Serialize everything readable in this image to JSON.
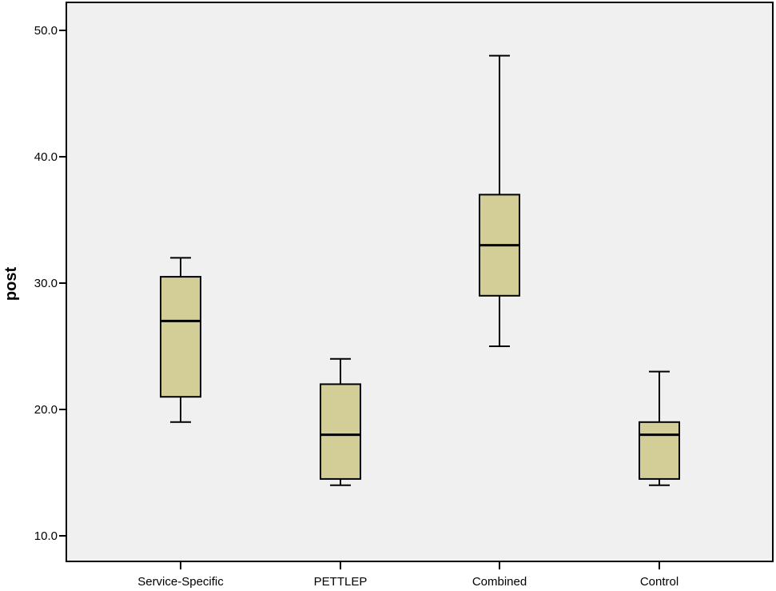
{
  "chart_data": {
    "type": "boxplot",
    "title": "",
    "xlabel": "",
    "ylabel": "post",
    "ylim": [
      7.9,
      52.2
    ],
    "yticks": [
      10.0,
      20.0,
      30.0,
      40.0,
      50.0
    ],
    "ytick_labels": [
      "10.0",
      "20.0",
      "30.0",
      "40.0",
      "50.0"
    ],
    "grid": false,
    "legend": null,
    "categories": [
      "Service-Specific",
      "PETTLEP",
      "Combined",
      "Control"
    ],
    "boxes": [
      {
        "category": "Service-Specific",
        "whisker_low": 19.0,
        "q1": 21.0,
        "median": 27.0,
        "q3": 30.5,
        "whisker_high": 32.0
      },
      {
        "category": "PETTLEP",
        "whisker_low": 14.0,
        "q1": 14.5,
        "median": 18.0,
        "q3": 22.0,
        "whisker_high": 24.0
      },
      {
        "category": "Combined",
        "whisker_low": 25.0,
        "q1": 29.0,
        "median": 33.0,
        "q3": 37.0,
        "whisker_high": 48.0
      },
      {
        "category": "Control",
        "whisker_low": 14.0,
        "q1": 14.5,
        "median": 18.0,
        "q3": 19.0,
        "whisker_high": 23.0
      }
    ],
    "colors": {
      "plot_background": "#f0f0f0",
      "box_fill": "#d3ce98",
      "box_outline": "#000000"
    }
  }
}
